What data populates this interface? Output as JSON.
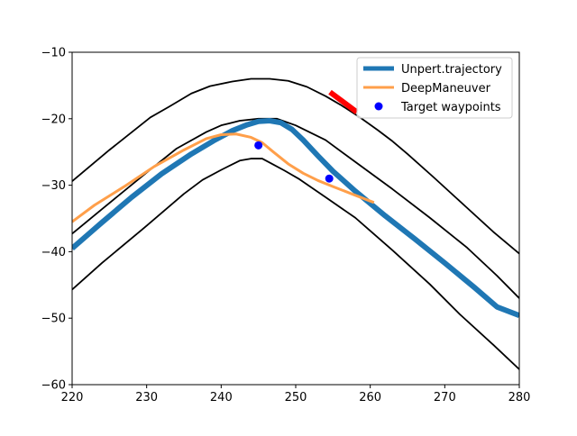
{
  "chart_data": {
    "type": "line",
    "xlim": [
      220,
      280
    ],
    "ylim": [
      -60,
      -10
    ],
    "x_ticks": [
      220,
      230,
      240,
      250,
      260,
      270,
      280
    ],
    "y_ticks": [
      -60,
      -50,
      -40,
      -30,
      -20,
      -10
    ],
    "x_tick_labels": [
      "220",
      "230",
      "240",
      "250",
      "260",
      "270",
      "280"
    ],
    "y_tick_labels": [
      "−60",
      "−50",
      "−40",
      "−30",
      "−20",
      "−10"
    ],
    "grid": false,
    "legend_position": "top-right",
    "boundaries": [
      {
        "role": "outer",
        "x": [
          220,
          225,
          230.5,
          233,
          236,
          238.5,
          241.5,
          244,
          246.5,
          249,
          251.5,
          254,
          256,
          258.5,
          261,
          263,
          265,
          268.5,
          272.5,
          276.5,
          280
        ],
        "y": [
          -29.4,
          -24.7,
          -19.8,
          -18.2,
          -16.2,
          -15.1,
          -14.4,
          -14.0,
          -14.0,
          -14.3,
          -15.2,
          -16.6,
          -17.9,
          -19.7,
          -21.7,
          -23.4,
          -25.3,
          -28.8,
          -32.9,
          -37.0,
          -40.3
        ]
      },
      {
        "role": "inner-upper",
        "x": [
          220,
          224,
          230,
          234,
          238,
          240,
          242.5,
          245,
          247.5,
          250,
          254,
          258,
          263,
          268,
          273,
          277,
          280
        ],
        "y": [
          -37.3,
          -33.6,
          -28.1,
          -24.5,
          -22.0,
          -21.0,
          -20.3,
          -20.0,
          -20.0,
          -21.0,
          -23.2,
          -26.5,
          -30.6,
          -34.9,
          -39.4,
          -43.6,
          -47.0
        ]
      },
      {
        "role": "inner-lower",
        "x": [
          220,
          224,
          230,
          235,
          237.5,
          240,
          242.5,
          244,
          245.5,
          247,
          248.5,
          250.5,
          254,
          258,
          263,
          268,
          272,
          276.5,
          280
        ],
        "y": [
          -45.7,
          -41.7,
          -36.1,
          -31.3,
          -29.2,
          -27.7,
          -26.3,
          -26.0,
          -26.0,
          -26.9,
          -27.8,
          -29.1,
          -31.8,
          -34.9,
          -39.8,
          -44.9,
          -49.4,
          -54.0,
          -57.7
        ]
      }
    ],
    "series": [
      {
        "name": "Unpert.trajectory",
        "color": "#1f77b4",
        "x": [
          220,
          224,
          228,
          232,
          236,
          239,
          241.5,
          243.5,
          245,
          246.5,
          248,
          249.5,
          251,
          253,
          255,
          258,
          262,
          266,
          270,
          274,
          277,
          280
        ],
        "y": [
          -39.5,
          -35.6,
          -31.8,
          -28.3,
          -25.3,
          -23.3,
          -21.8,
          -20.9,
          -20.4,
          -20.3,
          -20.6,
          -21.6,
          -23.2,
          -25.6,
          -27.9,
          -30.9,
          -34.6,
          -38.1,
          -41.7,
          -45.4,
          -48.3,
          -49.6
        ]
      },
      {
        "name": "DeepManeuver",
        "color": "#ff9f4a",
        "x": [
          220,
          223,
          227,
          231,
          235,
          238,
          240,
          242,
          244,
          245.5,
          247,
          249,
          251,
          253,
          255,
          257.5,
          260.5
        ],
        "y": [
          -35.5,
          -33.0,
          -30.2,
          -27.2,
          -24.7,
          -23.0,
          -22.4,
          -22.3,
          -22.8,
          -23.6,
          -25.0,
          -26.8,
          -28.2,
          -29.3,
          -30.2,
          -31.3,
          -32.6
        ]
      },
      {
        "name": "Target waypoints",
        "color": "#0000ff",
        "x": [
          245.0,
          254.5
        ],
        "y": [
          -24.0,
          -29.0
        ]
      }
    ],
    "annotations": [
      {
        "type": "segment",
        "color": "#ff0000",
        "x": [
          254.6,
          258.2
        ],
        "y": [
          -16.0,
          -19.0
        ]
      }
    ]
  }
}
